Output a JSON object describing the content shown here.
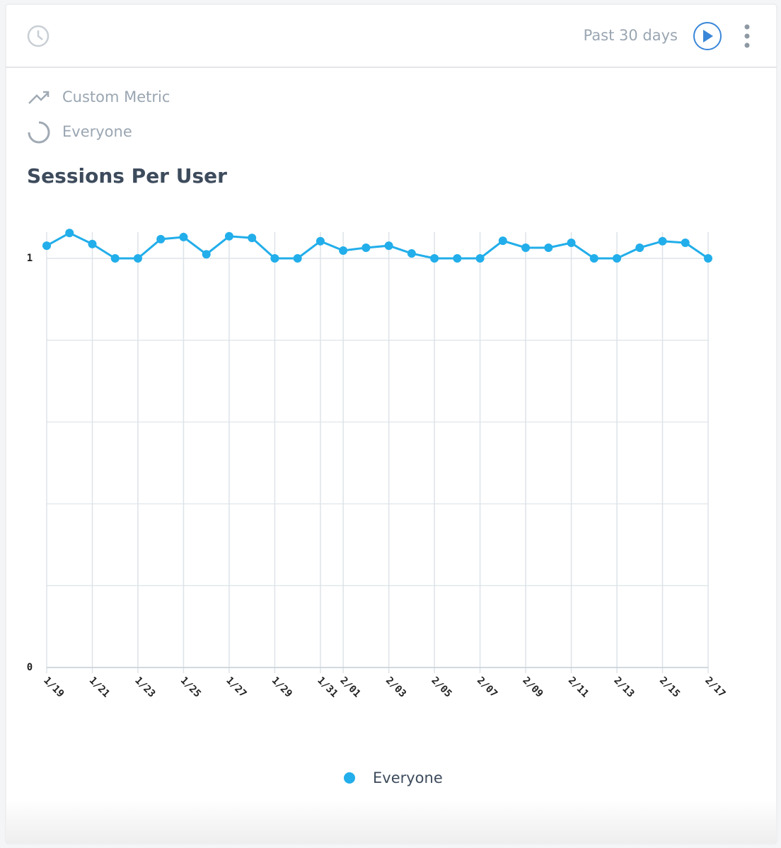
{
  "header": {
    "range": "Past 30 days"
  },
  "query": {
    "metric": "Custom Metric",
    "segment": "Everyone"
  },
  "chart_data": {
    "type": "line",
    "title": "Sessions Per User",
    "categories": [
      "1/19",
      null,
      "1/21",
      null,
      "1/23",
      null,
      "1/25",
      null,
      "1/27",
      null,
      "1/29",
      null,
      "1/31",
      "2/01",
      null,
      "2/03",
      null,
      "2/05",
      null,
      "2/07",
      null,
      "2/09",
      null,
      "2/11",
      null,
      "2/13",
      null,
      "2/15",
      null,
      "2/17"
    ],
    "series": [
      {
        "name": "Everyone",
        "color": "#22aeea",
        "values": [
          1.031,
          1.062,
          1.035,
          1,
          1,
          1.047,
          1.052,
          1.01,
          1.054,
          1.05,
          1,
          1,
          1.042,
          1.019,
          1.026,
          1.031,
          1.012,
          1,
          1,
          1,
          1.043,
          1.026,
          1.026,
          1.038,
          1,
          1,
          1.026,
          1.042,
          1.038,
          1
        ]
      }
    ],
    "ylim": [
      0,
      1.064
    ],
    "yticks": [
      0,
      1
    ],
    "yminor": [
      0.2,
      0.4,
      0.6,
      0.8
    ],
    "grid": true,
    "legend": "bottom"
  }
}
